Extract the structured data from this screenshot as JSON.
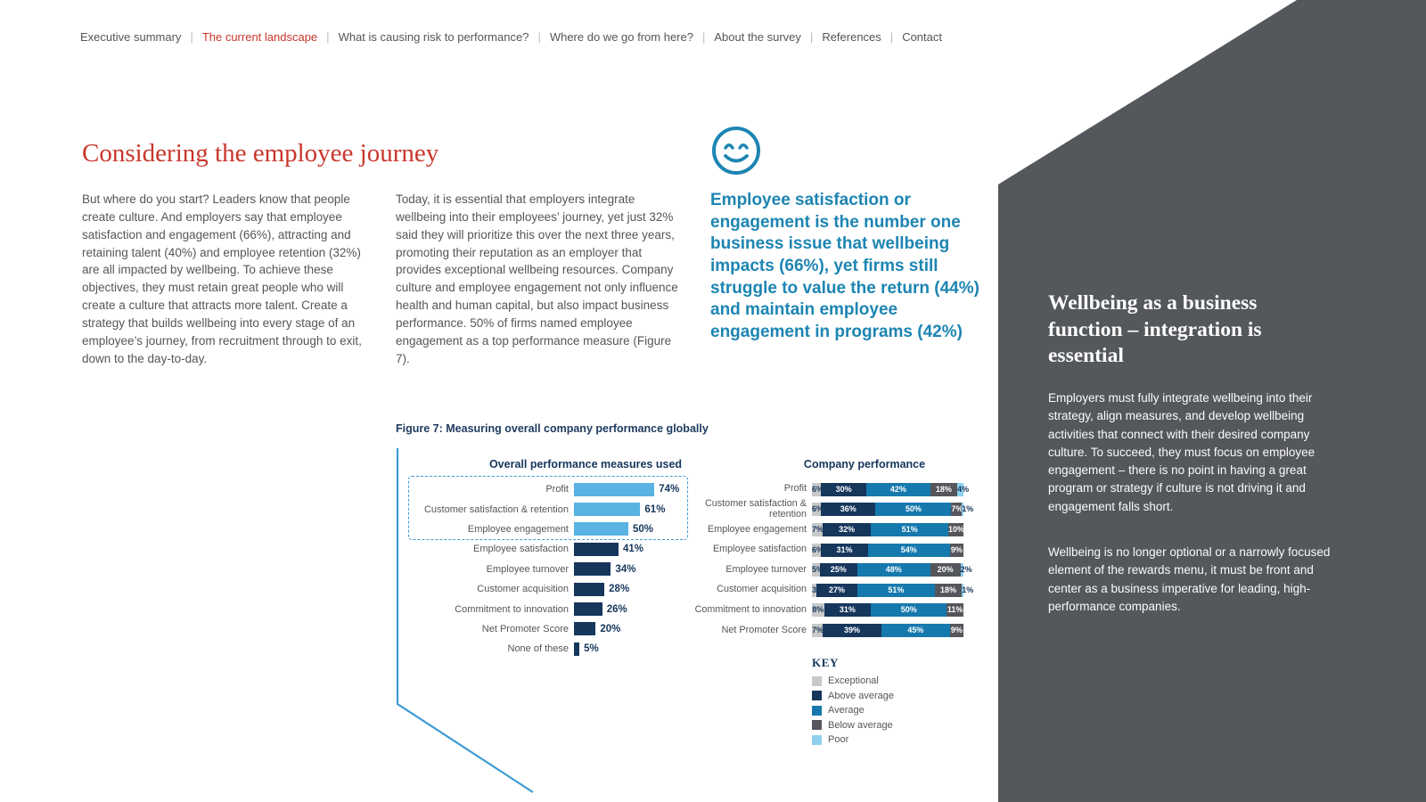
{
  "colors": {
    "accent_red": "#c9362c",
    "navy": "#16365c",
    "light_blue": "#58b2e2",
    "quote_blue": "#1d85b2",
    "panel_gray": "#54575b",
    "body_gray": "#53565a"
  },
  "nav": {
    "items": [
      {
        "label": "Executive summary",
        "active": false
      },
      {
        "label": "The current landscape",
        "active": true
      },
      {
        "label": "What is causing risk to performance?",
        "active": false
      },
      {
        "label": "Where do we go from here?",
        "active": false
      },
      {
        "label": "About the survey",
        "active": false
      },
      {
        "label": "References",
        "active": false
      },
      {
        "label": "Contact",
        "active": false
      }
    ]
  },
  "main": {
    "title": "Considering the employee journey",
    "col1": "But where do you start? Leaders know that people create culture. And employers say that employee satisfaction and engagement (66%), attracting and retaining talent (40%) and employee retention (32%) are all impacted by wellbeing. To achieve these objectives, they must retain great people who will create a culture that attracts more talent. Create a strategy that builds wellbeing into every stage of an employee’s journey, from recruitment through to exit, down to the day-to-day.",
    "col2": "Today, it is essential that employers integrate wellbeing into their employees’ journey, yet just 32% said they will prioritize this over the next three years, promoting their reputation as an employer that provides exceptional wellbeing resources. Company culture and employee engagement not only influence health and human capital, but also impact business performance. 50% of firms named employee engagement as a top performance measure (Figure 7).",
    "quote": "Employee satisfaction or engagement is the number one business issue that wellbeing impacts (66%), yet firms still struggle to value the return (44%) and maintain employee engagement in programs (42%)",
    "figure_caption": "Figure 7: Measuring overall company performance globally"
  },
  "chart_data": [
    {
      "type": "bar",
      "orientation": "horizontal",
      "title": "Overall performance measures used",
      "unit": "%",
      "categories": [
        "Profit",
        "Customer satisfaction & retention",
        "Employee engagement",
        "Employee satisfaction",
        "Employee turnover",
        "Customer acquisition",
        "Commitment to innovation",
        "Net Promoter Score",
        "None of these"
      ],
      "values": [
        74,
        61,
        50,
        41,
        34,
        28,
        26,
        20,
        5
      ],
      "highlight_first_n": 3,
      "highlight_color": "#58b2e2",
      "bar_color": "#16365c",
      "xlim": [
        0,
        100
      ]
    },
    {
      "type": "bar",
      "stacked": true,
      "orientation": "horizontal",
      "title": "Company performance",
      "unit": "%",
      "legend_title": "KEY",
      "legend_position": "bottom-left",
      "categories": [
        "Profit",
        "Customer satisfaction & retention",
        "Employee engagement",
        "Employee satisfaction",
        "Employee turnover",
        "Customer acquisition",
        "Commitment to innovation",
        "Net Promoter Score"
      ],
      "series": [
        {
          "name": "Exceptional",
          "color": "#c8cac9",
          "label_color": "#16365c",
          "values": [
            6,
            6,
            7,
            6,
            5,
            3,
            8,
            7
          ]
        },
        {
          "name": "Above average",
          "color": "#16365c",
          "label_color": "#ffffff",
          "values": [
            30,
            36,
            32,
            31,
            25,
            27,
            31,
            39
          ]
        },
        {
          "name": "Average",
          "color": "#1679ad",
          "label_color": "#ffffff",
          "values": [
            42,
            50,
            51,
            54,
            48,
            51,
            50,
            45
          ]
        },
        {
          "name": "Below average",
          "color": "#54565b",
          "label_color": "#ffffff",
          "values": [
            18,
            7,
            10,
            9,
            20,
            18,
            11,
            9
          ]
        },
        {
          "name": "Poor",
          "color": "#8fd0ee",
          "label_color": "#16365c",
          "values": [
            4,
            1,
            0,
            0,
            2,
            1,
            0,
            0
          ]
        }
      ],
      "xlim": [
        0,
        100
      ]
    }
  ],
  "sidebar": {
    "title": "Wellbeing as a business function – integration is essential",
    "para1": "Employers must fully integrate wellbeing into their strategy, align measures, and develop wellbeing activities that connect with their desired company culture. To succeed, they must focus on employee engagement – there is no point in having a great program or strategy if culture is not driving it and engagement falls short.",
    "para2": "Wellbeing is no longer optional or a narrowly focused element of the rewards menu, it must be front and center as a business imperative for leading, high-performance companies."
  }
}
